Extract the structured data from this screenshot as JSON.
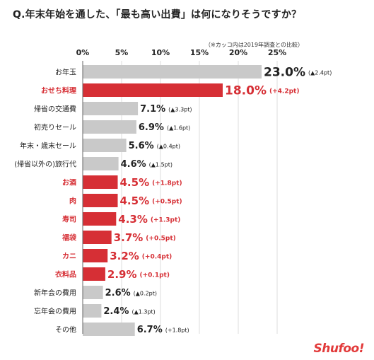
{
  "title": "Q.年末年始を通した、「最も高い出費」は何になりそうですか？",
  "note": "（※カッコ内は2019年調査との比較）",
  "brand": "Shufoo!",
  "colors": {
    "gray": "#c9c9c9",
    "red": "#d62f35",
    "axis": "#666666",
    "grid": "#dddddd",
    "text": "#222222"
  },
  "chart_data": {
    "type": "bar",
    "orientation": "horizontal",
    "xlim": [
      0,
      25
    ],
    "ticks": [
      "0%",
      "5%",
      "10%",
      "15%",
      "20%",
      "25%"
    ],
    "tick_values": [
      0,
      5,
      10,
      15,
      20,
      25
    ],
    "categories": [
      "お年玉",
      "おせち料理",
      "帰省の交通費",
      "初売りセール",
      "年末・歳末セール",
      "(帰省以外の)旅行代",
      "お酒",
      "肉",
      "寿司",
      "福袋",
      "カニ",
      "衣料品",
      "新年会の費用",
      "忘年会の費用",
      "その他"
    ],
    "values": [
      23.0,
      18.0,
      7.1,
      6.9,
      5.6,
      4.6,
      4.5,
      4.5,
      4.3,
      3.7,
      3.2,
      2.9,
      2.6,
      2.4,
      6.7
    ],
    "value_labels": [
      "23.0%",
      "18.0%",
      "7.1%",
      "6.9%",
      "5.6%",
      "4.6%",
      "4.5%",
      "4.5%",
      "4.3%",
      "3.7%",
      "3.2%",
      "2.9%",
      "2.6%",
      "2.4%",
      "6.7%"
    ],
    "changes": [
      "(▲2.4pt)",
      "(+4.2pt)",
      "(▲3.3pt)",
      "(▲1.6pt)",
      "(▲0.4pt)",
      "(▲1.5pt)",
      "(+1.8pt)",
      "(+0.5pt)",
      "(+1.3pt)",
      "(+0.5pt)",
      "(+0.4pt)",
      "(+0.1pt)",
      "(▲0.2pt)",
      "(▲1.3pt)",
      "(+1.8pt)"
    ],
    "highlighted": [
      false,
      true,
      false,
      false,
      false,
      false,
      true,
      true,
      true,
      true,
      true,
      true,
      false,
      false,
      false
    ]
  }
}
